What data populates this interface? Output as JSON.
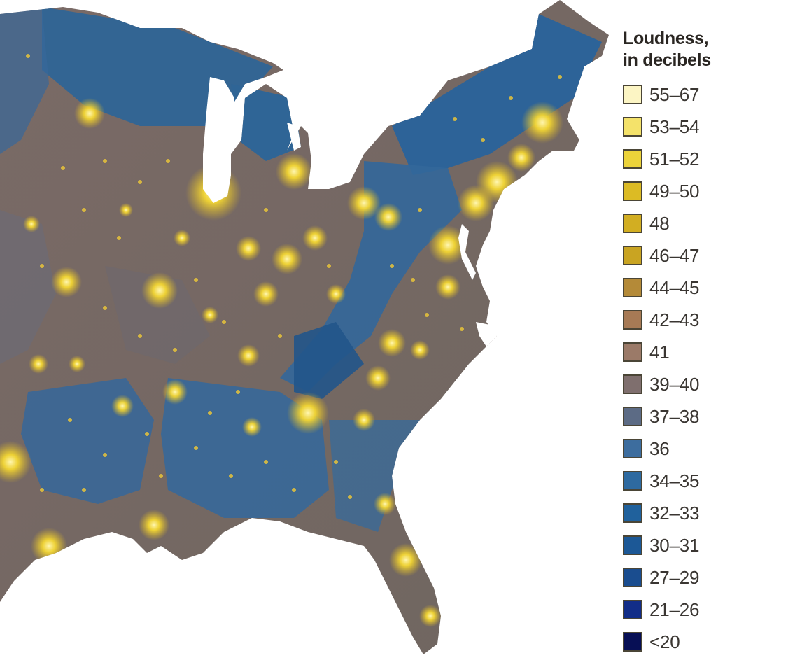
{
  "map": {
    "subject": "Eastern United States noise map",
    "land_colors": {
      "quiet_blue": "#2f6596",
      "mid_brown": "#7e6a5c",
      "loud_glow": "#f2cf2a",
      "water": "#ffffff"
    }
  },
  "legend": {
    "title_line1": "Loudness,",
    "title_line2": "in decibels",
    "items": [
      {
        "label": "55–67",
        "color": "#fcf5c4"
      },
      {
        "label": "53–54",
        "color": "#f4e26a"
      },
      {
        "label": "51–52",
        "color": "#ecd33a"
      },
      {
        "label": "49–50",
        "color": "#dcbb24"
      },
      {
        "label": "48",
        "color": "#d2ae22"
      },
      {
        "label": "46–47",
        "color": "#c9a422"
      },
      {
        "label": "44–45",
        "color": "#b48a38"
      },
      {
        "label": "42–43",
        "color": "#a77a55"
      },
      {
        "label": "41",
        "color": "#9b7a68"
      },
      {
        "label": "39–40",
        "color": "#7f6f6e"
      },
      {
        "label": "37–38",
        "color": "#5c6b85"
      },
      {
        "label": "36",
        "color": "#3d6d9e"
      },
      {
        "label": "34–35",
        "color": "#2e6aa0"
      },
      {
        "label": "32–33",
        "color": "#20619c"
      },
      {
        "label": "30–31",
        "color": "#1c5896"
      },
      {
        "label": "27–29",
        "color": "#1a4d8f"
      },
      {
        "label": "21–26",
        "color": "#122d88"
      },
      {
        "label": "<20",
        "color": "#070f55"
      }
    ]
  }
}
